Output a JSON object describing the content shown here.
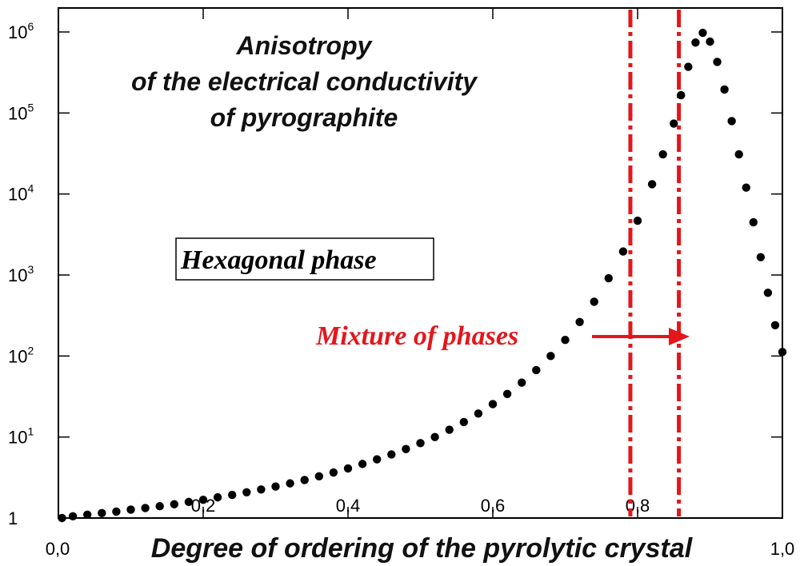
{
  "chart_data": {
    "type": "scatter",
    "title_lines": [
      "Anisotropy",
      "of the electrical conductivity",
      "of pyrographite"
    ],
    "xlabel": "Degree of ordering of the pyrolytic crystal",
    "xlim": [
      0,
      1
    ],
    "x_ticks": [
      {
        "value": 0.0,
        "label": "0,0"
      },
      {
        "value": 0.2,
        "label": "0,2"
      },
      {
        "value": 0.4,
        "label": "0,4"
      },
      {
        "value": 0.6,
        "label": "0,6"
      },
      {
        "value": 0.8,
        "label": "0,8"
      },
      {
        "value": 1.0,
        "label": "1,0"
      }
    ],
    "y_scale": "log",
    "ylim": [
      1,
      1000000
    ],
    "y_ticks": [
      {
        "value": 1,
        "base": "1",
        "exp": ""
      },
      {
        "value": 10,
        "base": "10",
        "exp": "1"
      },
      {
        "value": 100,
        "base": "10",
        "exp": "2"
      },
      {
        "value": 1000,
        "base": "10",
        "exp": "3"
      },
      {
        "value": 10000,
        "base": "10",
        "exp": "4"
      },
      {
        "value": 100000,
        "base": "10",
        "exp": "5"
      },
      {
        "value": 1000000,
        "base": "10",
        "exp": "6"
      }
    ],
    "series": [
      {
        "marker_color": "#000000",
        "points": [
          [
            0.005,
            1.0
          ],
          [
            0.02,
            1.05
          ],
          [
            0.04,
            1.1
          ],
          [
            0.06,
            1.15
          ],
          [
            0.08,
            1.2
          ],
          [
            0.1,
            1.27
          ],
          [
            0.12,
            1.33
          ],
          [
            0.14,
            1.4
          ],
          [
            0.16,
            1.48
          ],
          [
            0.18,
            1.58
          ],
          [
            0.2,
            1.68
          ],
          [
            0.22,
            1.8
          ],
          [
            0.24,
            1.93
          ],
          [
            0.26,
            2.08
          ],
          [
            0.28,
            2.25
          ],
          [
            0.3,
            2.45
          ],
          [
            0.32,
            2.68
          ],
          [
            0.34,
            2.95
          ],
          [
            0.36,
            3.27
          ],
          [
            0.38,
            3.65
          ],
          [
            0.4,
            4.1
          ],
          [
            0.42,
            4.65
          ],
          [
            0.44,
            5.3
          ],
          [
            0.46,
            6.1
          ],
          [
            0.48,
            7.1
          ],
          [
            0.5,
            8.4
          ],
          [
            0.52,
            10.0
          ],
          [
            0.54,
            12.3
          ],
          [
            0.56,
            15.3
          ],
          [
            0.58,
            19.5
          ],
          [
            0.6,
            25.5
          ],
          [
            0.62,
            34.0
          ],
          [
            0.64,
            47.0
          ],
          [
            0.66,
            67.0
          ],
          [
            0.68,
            100.0
          ],
          [
            0.7,
            158.0
          ],
          [
            0.72,
            263.0
          ],
          [
            0.74,
            468.0
          ],
          [
            0.76,
            912.0
          ],
          [
            0.78,
            1950.0
          ],
          [
            0.8,
            4680.0
          ],
          [
            0.82,
            13200.0
          ],
          [
            0.835,
            30900.0
          ],
          [
            0.85,
            74100.0
          ],
          [
            0.86,
            166000.0
          ],
          [
            0.87,
            372000.0
          ],
          [
            0.88,
            740000.0
          ],
          [
            0.89,
            977000.0
          ],
          [
            0.9,
            759000.0
          ],
          [
            0.91,
            427000.0
          ],
          [
            0.92,
            195000.0
          ],
          [
            0.93,
            79400.0
          ],
          [
            0.94,
            30900.0
          ],
          [
            0.95,
            12000.0
          ],
          [
            0.96,
            4470.0
          ],
          [
            0.97,
            1660.0
          ],
          [
            0.98,
            603.0
          ],
          [
            0.99,
            240.0
          ],
          [
            1.0,
            112.0
          ]
        ]
      }
    ],
    "vertical_lines": [
      {
        "x": 0.79,
        "color": "#e4161b",
        "style": "dash-dot"
      },
      {
        "x": 0.857,
        "color": "#e4161b",
        "style": "dash-dot"
      }
    ],
    "annotations": {
      "hexagonal": {
        "text": "Hexagonal phase",
        "x": 0.17,
        "y": 1000,
        "boxed": true
      },
      "mixture": {
        "text": "Mixture of phases",
        "x": 0.55,
        "y": 120,
        "color": "#e4161b",
        "arrow_to_x": 0.785
      }
    },
    "grid": false,
    "legend": "none"
  }
}
